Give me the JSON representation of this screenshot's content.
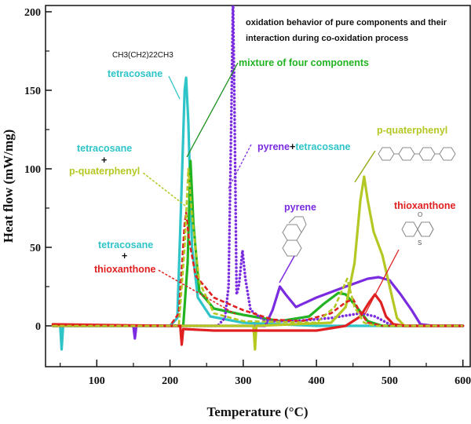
{
  "chart_data": {
    "type": "line",
    "title": "oxidation behavior of pure components and their interaction during co-oxidation process",
    "title_lines": [
      "oxidation behavior of pure components and their",
      "interaction during co-oxidation process"
    ],
    "xlabel": "Temperature (°C)",
    "ylabel": "Heat flow (mW/mg)",
    "xlim": [
      30,
      610
    ],
    "ylim": [
      -26,
      204
    ],
    "xticks": [
      100,
      200,
      300,
      400,
      500,
      600
    ],
    "yticks": [
      0,
      50,
      100,
      150,
      200
    ],
    "grid": false,
    "series": [
      {
        "name": "tetracosane",
        "color": "#2ec4c8",
        "style": "solid",
        "points": [
          [
            40,
            0
          ],
          [
            50,
            0
          ],
          [
            52,
            -15
          ],
          [
            54,
            0
          ],
          [
            200,
            0
          ],
          [
            210,
            5
          ],
          [
            216,
            90
          ],
          [
            220,
            150
          ],
          [
            222,
            158
          ],
          [
            225,
            130
          ],
          [
            230,
            50
          ],
          [
            238,
            18
          ],
          [
            255,
            6
          ],
          [
            300,
            2
          ],
          [
            350,
            1
          ],
          [
            400,
            0
          ],
          [
            450,
            0
          ],
          [
            600,
            0
          ]
        ]
      },
      {
        "name": "mixture of four components",
        "color": "#22b322",
        "style": "solid",
        "points": [
          [
            40,
            0
          ],
          [
            218,
            0
          ],
          [
            224,
            40
          ],
          [
            228,
            105
          ],
          [
            232,
            65
          ],
          [
            240,
            22
          ],
          [
            260,
            11
          ],
          [
            300,
            7
          ],
          [
            350,
            3
          ],
          [
            390,
            6
          ],
          [
            410,
            14
          ],
          [
            430,
            21
          ],
          [
            440,
            20
          ],
          [
            455,
            12
          ],
          [
            470,
            3
          ],
          [
            490,
            0
          ],
          [
            600,
            0
          ]
        ]
      },
      {
        "name": "pyrene+tetracosane",
        "color": "#7b2be0",
        "style": "dotted",
        "points": [
          [
            40,
            0
          ],
          [
            265,
            0
          ],
          [
            275,
            5
          ],
          [
            280,
            25
          ],
          [
            284,
            140
          ],
          [
            286,
            210
          ],
          [
            288,
            140
          ],
          [
            291,
            20
          ],
          [
            294,
            25
          ],
          [
            299,
            48
          ],
          [
            303,
            30
          ],
          [
            310,
            10
          ],
          [
            330,
            3
          ],
          [
            370,
            3
          ],
          [
            420,
            5
          ],
          [
            460,
            8
          ],
          [
            480,
            6
          ],
          [
            500,
            1
          ],
          [
            520,
            0
          ],
          [
            600,
            0
          ]
        ]
      },
      {
        "name": "pyrene",
        "color": "#7b2be0",
        "style": "solid",
        "points": [
          [
            40,
            0
          ],
          [
            150,
            0
          ],
          [
            152,
            -8
          ],
          [
            154,
            0
          ],
          [
            330,
            0
          ],
          [
            340,
            10
          ],
          [
            350,
            25
          ],
          [
            358,
            20
          ],
          [
            372,
            12
          ],
          [
            400,
            18
          ],
          [
            440,
            25
          ],
          [
            470,
            30
          ],
          [
            485,
            31
          ],
          [
            500,
            29
          ],
          [
            515,
            20
          ],
          [
            530,
            10
          ],
          [
            542,
            1
          ],
          [
            560,
            0
          ],
          [
            600,
            0
          ]
        ]
      },
      {
        "name": "p-quaterphenyl",
        "color": "#b5c723",
        "style": "solid",
        "points": [
          [
            40,
            0
          ],
          [
            314,
            0
          ],
          [
            316,
            -15
          ],
          [
            318,
            0
          ],
          [
            420,
            2
          ],
          [
            440,
            12
          ],
          [
            452,
            40
          ],
          [
            460,
            80
          ],
          [
            465,
            95
          ],
          [
            470,
            80
          ],
          [
            478,
            60
          ],
          [
            490,
            45
          ],
          [
            500,
            25
          ],
          [
            510,
            5
          ],
          [
            520,
            0
          ],
          [
            600,
            0
          ]
        ]
      },
      {
        "name": "thioxanthone",
        "color": "#e02020",
        "style": "solid",
        "points": [
          [
            40,
            1
          ],
          [
            200,
            0
          ],
          [
            214,
            0
          ],
          [
            216,
            -12
          ],
          [
            218,
            -2
          ],
          [
            260,
            -3
          ],
          [
            400,
            -3
          ],
          [
            440,
            0
          ],
          [
            460,
            6
          ],
          [
            472,
            15
          ],
          [
            480,
            20
          ],
          [
            488,
            15
          ],
          [
            495,
            6
          ],
          [
            505,
            1
          ],
          [
            520,
            0
          ],
          [
            600,
            0
          ]
        ]
      },
      {
        "name": "tetracosane+thioxanthone",
        "color": "#e02020",
        "style": "dashed",
        "points": [
          [
            40,
            0
          ],
          [
            200,
            0
          ],
          [
            212,
            8
          ],
          [
            220,
            65
          ],
          [
            222,
            72
          ],
          [
            226,
            55
          ],
          [
            235,
            32
          ],
          [
            260,
            18
          ],
          [
            300,
            10
          ],
          [
            340,
            4
          ],
          [
            380,
            3
          ],
          [
            420,
            8
          ],
          [
            440,
            15
          ],
          [
            450,
            17
          ],
          [
            458,
            10
          ],
          [
            470,
            2
          ],
          [
            490,
            0
          ],
          [
            600,
            0
          ]
        ]
      },
      {
        "name": "tetracosane+p-quaterphenyl",
        "color": "#b5c723",
        "style": "dashed",
        "points": [
          [
            40,
            0
          ],
          [
            212,
            0
          ],
          [
            220,
            50
          ],
          [
            225,
            100
          ],
          [
            230,
            70
          ],
          [
            240,
            28
          ],
          [
            260,
            8
          ],
          [
            300,
            3
          ],
          [
            400,
            2
          ],
          [
            425,
            12
          ],
          [
            442,
            30
          ],
          [
            452,
            12
          ],
          [
            465,
            2
          ],
          [
            480,
            0
          ],
          [
            600,
            0
          ]
        ]
      }
    ],
    "annotations": {
      "formula": "CH3(CH2)22CH3",
      "tetracosane": "tetracosane",
      "mixture": "mixture of four components",
      "pyrene_tetra_a": "pyrene",
      "pyrene_tetra_plus": "+",
      "pyrene_tetra_b": "tetracosane",
      "tq_a": "tetracosane",
      "tq_plus": "+",
      "tq_b": "p-quaterphenyl",
      "pquaterphenyl": "p-quaterphenyl",
      "pyrene": "pyrene",
      "thioxanthone": "thioxanthone",
      "tt_a": "tetracosane",
      "tt_plus": "+",
      "tt_b": "thioxanthone",
      "struct_O": "O",
      "struct_S": "S"
    }
  }
}
